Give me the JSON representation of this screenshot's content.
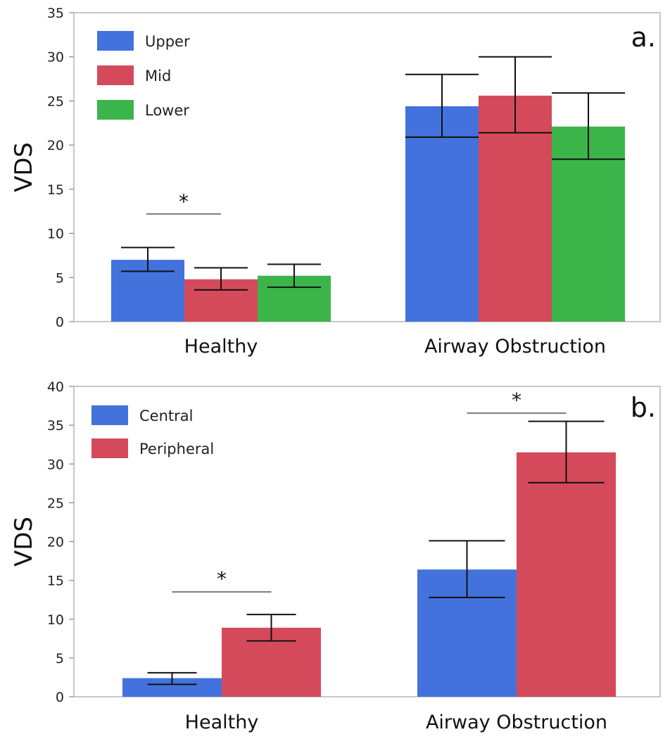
{
  "chart_data": [
    {
      "type": "bar",
      "panel_label": "a.",
      "ylabel": "VDS",
      "xlabel": "",
      "ylim": [
        0,
        35
      ],
      "yticks": [
        0,
        5,
        10,
        15,
        20,
        25,
        30,
        35
      ],
      "categories": [
        "Healthy",
        "Airway Obstruction"
      ],
      "legend_position": "top-left",
      "series": [
        {
          "name": "Upper",
          "color": "#4372DC",
          "values": [
            7.0,
            24.4
          ],
          "err_low": [
            5.7,
            20.9
          ],
          "err_high": [
            8.4,
            28.0
          ]
        },
        {
          "name": "Mid",
          "color": "#D44A5A",
          "values": [
            4.8,
            25.6
          ],
          "err_low": [
            3.6,
            21.4
          ],
          "err_high": [
            6.1,
            30.0
          ]
        },
        {
          "name": "Lower",
          "color": "#3BB54A",
          "values": [
            5.2,
            22.1
          ],
          "err_low": [
            3.9,
            18.4
          ],
          "err_high": [
            6.5,
            25.9
          ]
        }
      ],
      "significance": [
        {
          "category": "Healthy",
          "between": [
            "Upper",
            "Mid"
          ],
          "label": "*"
        }
      ]
    },
    {
      "type": "bar",
      "panel_label": "b.",
      "ylabel": "VDS",
      "xlabel": "",
      "ylim": [
        0,
        40
      ],
      "yticks": [
        0,
        5,
        10,
        15,
        20,
        25,
        30,
        35,
        40
      ],
      "categories": [
        "Healthy",
        "Airway Obstruction"
      ],
      "legend_position": "top-left",
      "series": [
        {
          "name": "Central",
          "color": "#4372DC",
          "values": [
            2.4,
            16.4
          ],
          "err_low": [
            1.6,
            12.8
          ],
          "err_high": [
            3.1,
            20.1
          ]
        },
        {
          "name": "Peripheral",
          "color": "#D44A5A",
          "values": [
            8.9,
            31.5
          ],
          "err_low": [
            7.2,
            27.6
          ],
          "err_high": [
            10.6,
            35.5
          ]
        }
      ],
      "significance": [
        {
          "category": "Healthy",
          "between": [
            "Central",
            "Peripheral"
          ],
          "label": "*"
        },
        {
          "category": "Airway Obstruction",
          "between": [
            "Central",
            "Peripheral"
          ],
          "label": "*"
        }
      ]
    }
  ]
}
